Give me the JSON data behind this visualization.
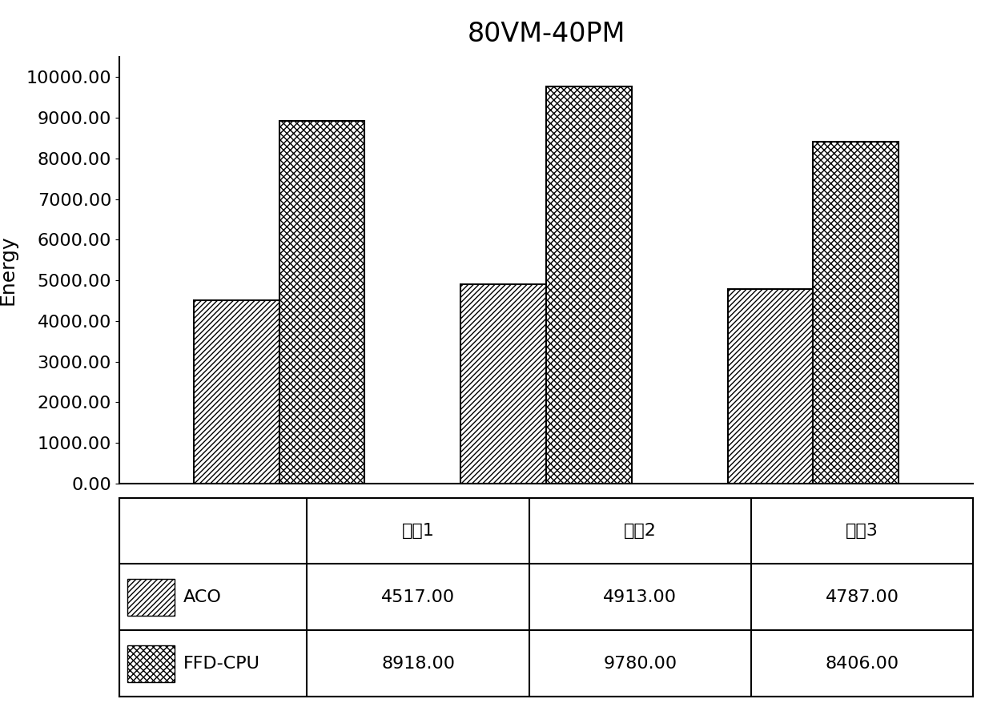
{
  "title": "80VM-40PM",
  "ylabel": "Energy",
  "categories": [
    "场具1",
    "场具2",
    "场具3"
  ],
  "series": [
    {
      "label": "ACO",
      "values": [
        4517.0,
        4913.0,
        4787.0
      ],
      "hatch": "---",
      "facecolor": "#ffffff",
      "edgecolor": "#000000"
    },
    {
      "label": "FFD-CPU",
      "values": [
        8918.0,
        9780.0,
        8406.0
      ],
      "hatch": "xx",
      "facecolor": "#ffffff",
      "edgecolor": "#000000"
    }
  ],
  "yticks": [
    0,
    1000,
    2000,
    3000,
    4000,
    5000,
    6000,
    7000,
    8000,
    9000,
    10000
  ],
  "ylim": [
    0,
    10500
  ],
  "bar_width": 0.32,
  "title_fontsize": 24,
  "label_fontsize": 18,
  "tick_fontsize": 16,
  "table_fontsize": 16,
  "background_color": "#ffffff"
}
